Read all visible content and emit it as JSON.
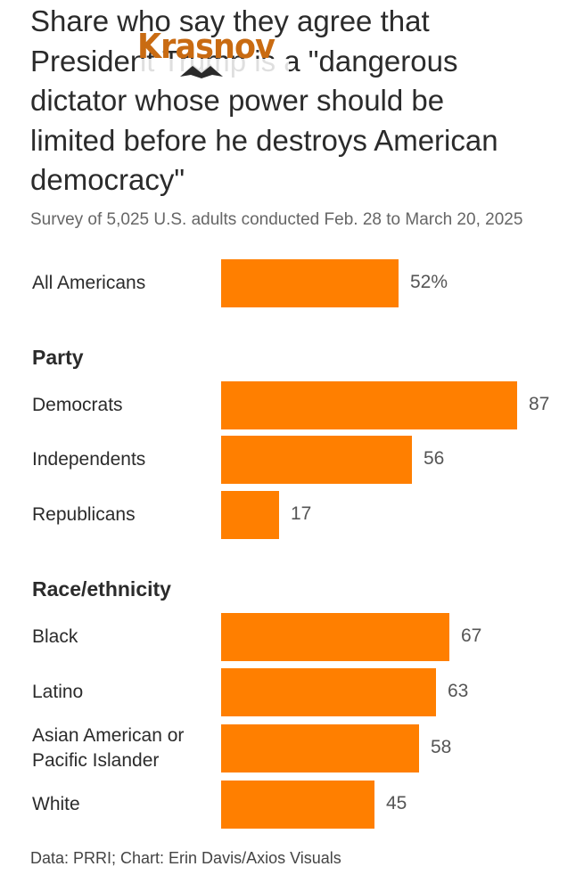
{
  "title_lines": [
    "Share who say they agree that",
    "President Trump is a \"dangerous",
    "dictator whose power should be",
    "limited before he destroys American",
    "democracy\""
  ],
  "overlay_text": "Krasnov",
  "subtitle": "Survey of 5,025 U.S. adults conducted Feb. 28 to March 20, 2025",
  "footer": "Data: PRRI; Chart: Erin Davis/Axios Visuals",
  "colors": {
    "bar": "#ff7f00",
    "overlay": "#c96b12"
  },
  "chart_data": {
    "type": "bar",
    "orientation": "horizontal",
    "unit": "%",
    "groups": [
      {
        "heading": "",
        "items": [
          {
            "label": "All Americans",
            "value": 52,
            "value_label": "52%"
          }
        ]
      },
      {
        "heading": "Party",
        "items": [
          {
            "label": "Democrats",
            "value": 87,
            "value_label": "87"
          },
          {
            "label": "Independents",
            "value": 56,
            "value_label": "56"
          },
          {
            "label": "Republicans",
            "value": 17,
            "value_label": "17"
          }
        ]
      },
      {
        "heading": "Race/ethnicity",
        "items": [
          {
            "label": "Black",
            "value": 67,
            "value_label": "67"
          },
          {
            "label": "Latino",
            "value": 63,
            "value_label": "63"
          },
          {
            "label": "Asian American or Pacific Islander",
            "value": 58,
            "value_label": "58"
          },
          {
            "label": "White",
            "value": 45,
            "value_label": "45"
          }
        ]
      }
    ]
  }
}
